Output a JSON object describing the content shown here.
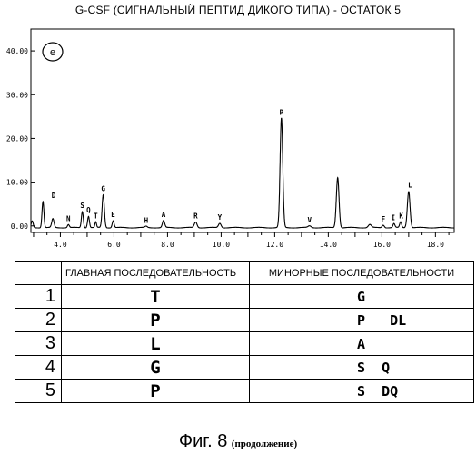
{
  "title": "G-CSF (СИГНАЛЬНЫЙ ПЕПТИД ДИКОГО ТИПА) - ОСТАТОК 5",
  "chart_data": {
    "type": "line",
    "panel_label": "e",
    "xlim": [
      2.9,
      18.7
    ],
    "ylim": [
      -1.5,
      45
    ],
    "x_ticks": [
      4.0,
      6.0,
      8.0,
      10.0,
      12.0,
      14.0,
      16.0,
      18.0
    ],
    "x_tick_labels": [
      "4.0",
      "6.0",
      "8.0",
      "10.0",
      "12.0",
      "14.0",
      "16.0",
      "18.0"
    ],
    "y_ticks": [
      0,
      10,
      20,
      30,
      40
    ],
    "y_tick_labels": [
      "0.00",
      "10.00",
      "20.00",
      "30.00",
      "40.00"
    ],
    "grid": false,
    "baseline": -0.4,
    "peaks": [
      {
        "x": 3.35,
        "h": 6.0,
        "w": 0.05,
        "label": "D",
        "label_x": 3.75
      },
      {
        "x": 3.72,
        "h": 2.0,
        "w": 0.06,
        "label": "",
        "label_x": 3.72
      },
      {
        "x": 4.3,
        "h": 0.7,
        "w": 0.05,
        "label": "N",
        "label_x": 4.3
      },
      {
        "x": 4.82,
        "h": 3.7,
        "w": 0.05,
        "label": "S",
        "label_x": 4.82
      },
      {
        "x": 5.05,
        "h": 2.6,
        "w": 0.05,
        "label": "Q",
        "label_x": 5.05
      },
      {
        "x": 5.32,
        "h": 1.3,
        "w": 0.04,
        "label": "T",
        "label_x": 5.32
      },
      {
        "x": 5.6,
        "h": 7.5,
        "w": 0.06,
        "label": "G",
        "label_x": 5.6
      },
      {
        "x": 5.97,
        "h": 1.6,
        "w": 0.05,
        "label": "E",
        "label_x": 5.97
      },
      {
        "x": 7.2,
        "h": 0.3,
        "w": 0.06,
        "label": "H",
        "label_x": 7.2
      },
      {
        "x": 7.85,
        "h": 1.6,
        "w": 0.06,
        "label": "A",
        "label_x": 7.85
      },
      {
        "x": 9.05,
        "h": 1.3,
        "w": 0.07,
        "label": "R",
        "label_x": 9.05
      },
      {
        "x": 9.95,
        "h": 1.0,
        "w": 0.07,
        "label": "Y",
        "label_x": 9.95
      },
      {
        "x": 12.25,
        "h": 25.0,
        "w": 0.07,
        "label": "P",
        "label_x": 12.25
      },
      {
        "x": 13.3,
        "h": 0.4,
        "w": 0.08,
        "label": "V",
        "label_x": 13.3
      },
      {
        "x": 14.35,
        "h": 11.5,
        "w": 0.07,
        "label": "",
        "label_x": 14.35
      },
      {
        "x": 15.55,
        "h": 0.7,
        "w": 0.08,
        "label": "",
        "label_x": 15.55
      },
      {
        "x": 16.05,
        "h": 0.6,
        "w": 0.06,
        "label": "F",
        "label_x": 16.05
      },
      {
        "x": 16.45,
        "h": 0.9,
        "w": 0.05,
        "label": "I",
        "label_x": 16.42
      },
      {
        "x": 16.7,
        "h": 1.3,
        "w": 0.05,
        "label": "K",
        "label_x": 16.72
      },
      {
        "x": 17.0,
        "h": 8.3,
        "w": 0.07,
        "label": "L",
        "label_x": 17.05
      }
    ]
  },
  "table": {
    "headers": [
      "",
      "ГЛАВНАЯ ПОСЛЕДОВАТЕЛЬНОСТЬ",
      "МИНОРНЫЕ ПОСЛЕДОВАТЕЛЬНОСТИ"
    ],
    "rows": [
      {
        "num": "1",
        "main": "T",
        "minor": "G"
      },
      {
        "num": "2",
        "main": "P",
        "minor": "P   DL"
      },
      {
        "num": "3",
        "main": "L",
        "minor": "A"
      },
      {
        "num": "4",
        "main": "G",
        "minor": "S  Q"
      },
      {
        "num": "5",
        "main": "P",
        "minor": "S  DQ"
      }
    ]
  },
  "caption": {
    "figure": "Фиг. 8",
    "note": "(продолжение)"
  }
}
